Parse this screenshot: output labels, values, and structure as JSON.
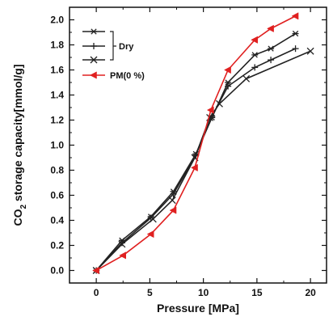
{
  "chart_data": {
    "type": "line",
    "title": "",
    "xlabel": "Pressure [MPa]",
    "ylabel_main": "CO",
    "ylabel_sub": "2",
    "ylabel_rest": " storage capacity[mmol/g]",
    "xlim": [
      -2.5,
      21.5
    ],
    "ylim": [
      -0.1,
      2.1
    ],
    "xticks": [
      0,
      5,
      10,
      15,
      20
    ],
    "xtick_labels": [
      "0",
      "5",
      "10",
      "15",
      "20"
    ],
    "yticks": [
      0.0,
      0.2,
      0.4,
      0.6,
      0.8,
      1.0,
      1.2,
      1.4,
      1.6,
      1.8,
      2.0
    ],
    "ytick_labels": [
      "0.0",
      "0.2",
      "0.4",
      "0.6",
      "0.8",
      "1.0",
      "1.2",
      "1.4",
      "1.6",
      "1.8",
      "2.0"
    ],
    "legend": {
      "placement": "top-left",
      "group_label": "Dry",
      "pm_label": "PM(0 %)"
    },
    "series": [
      {
        "marker": "asterisk",
        "color": "#222222",
        "x": [
          0,
          2.4,
          5.1,
          7.2,
          9.3,
          10.8,
          12.3,
          14.8,
          16.3,
          18.6
        ],
        "y": [
          0.0,
          0.24,
          0.43,
          0.63,
          0.93,
          1.22,
          1.5,
          1.72,
          1.77,
          1.89
        ]
      },
      {
        "marker": "plus",
        "color": "#222222",
        "x": [
          0,
          2.4,
          5.1,
          7.2,
          9.3,
          10.8,
          12.3,
          14.8,
          16.3,
          18.6
        ],
        "y": [
          0.0,
          0.22,
          0.42,
          0.61,
          0.92,
          1.23,
          1.47,
          1.62,
          1.68,
          1.77
        ]
      },
      {
        "marker": "cross",
        "color": "#222222",
        "x": [
          0,
          2.4,
          5.3,
          7.1,
          9.2,
          10.6,
          11.5,
          14.0,
          20.0
        ],
        "y": [
          0.0,
          0.21,
          0.41,
          0.56,
          0.9,
          1.22,
          1.33,
          1.53,
          1.75
        ]
      },
      {
        "marker": "triangle-left",
        "color": "#e02020",
        "x": [
          0,
          2.5,
          5.1,
          7.2,
          9.2,
          10.7,
          12.3,
          14.8,
          16.3,
          18.6
        ],
        "y": [
          0.0,
          0.12,
          0.29,
          0.48,
          0.82,
          1.28,
          1.6,
          1.84,
          1.93,
          2.03
        ]
      }
    ]
  }
}
